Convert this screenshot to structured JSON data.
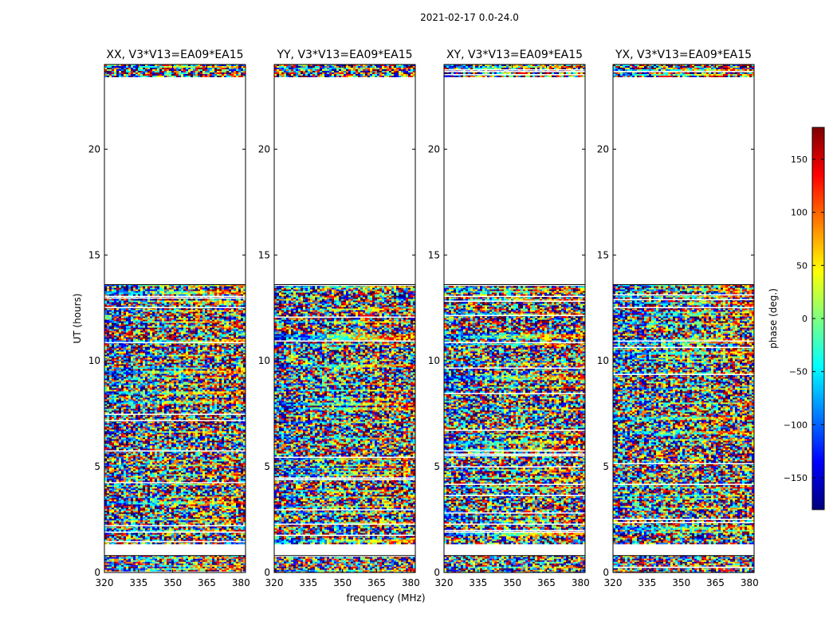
{
  "figure_title": "2021-02-17 0.0-24.0",
  "shared_xlabel": "frequency (MHz)",
  "shared_ylabel": "UT (hours)",
  "colorbar": {
    "label": "phase (deg.)",
    "range": [
      -180,
      180
    ],
    "ticks": [
      150,
      100,
      50,
      0,
      -50,
      -100,
      -150
    ],
    "tick_labels": [
      "150",
      "100",
      "50",
      "0",
      "−50",
      "−100",
      "−150"
    ],
    "colormap": [
      "#00007f",
      "#0000ff",
      "#007fff",
      "#00ffff",
      "#7fff7f",
      "#ffff00",
      "#ff7f00",
      "#ff0000",
      "#7f0000"
    ]
  },
  "chart_data": [
    {
      "type": "heatmap",
      "title": "XX, V3*V13=EA09*EA15",
      "xlabel": "frequency (MHz)",
      "ylabel": "UT (hours)",
      "xlim": [
        320,
        382
      ],
      "ylim": [
        0,
        24
      ],
      "xticks": [
        320,
        335,
        350,
        365,
        380
      ],
      "yticks": [
        0,
        5,
        10,
        15,
        20
      ],
      "value": "phase (deg.)",
      "data_time_ranges_hours": [
        [
          0.0,
          0.8
        ],
        [
          1.4,
          13.6
        ],
        [
          23.4,
          24.0
        ]
      ]
    },
    {
      "type": "heatmap",
      "title": "YY, V3*V13=EA09*EA15",
      "xlabel": "frequency (MHz)",
      "ylabel": "UT (hours)",
      "xlim": [
        320,
        382
      ],
      "ylim": [
        0,
        24
      ],
      "xticks": [
        320,
        335,
        350,
        365,
        380
      ],
      "yticks": [
        0,
        5,
        10,
        15,
        20
      ],
      "value": "phase (deg.)",
      "data_time_ranges_hours": [
        [
          0.0,
          0.8
        ],
        [
          1.4,
          13.6
        ],
        [
          23.4,
          24.0
        ]
      ]
    },
    {
      "type": "heatmap",
      "title": "XY, V3*V13=EA09*EA15",
      "xlabel": "frequency (MHz)",
      "ylabel": "UT (hours)",
      "xlim": [
        320,
        382
      ],
      "ylim": [
        0,
        24
      ],
      "xticks": [
        320,
        335,
        350,
        365,
        380
      ],
      "yticks": [
        0,
        5,
        10,
        15,
        20
      ],
      "value": "phase (deg.)",
      "data_time_ranges_hours": [
        [
          0.0,
          0.8
        ],
        [
          1.4,
          13.6
        ],
        [
          23.4,
          24.0
        ]
      ]
    },
    {
      "type": "heatmap",
      "title": "YX, V3*V13=EA09*EA15",
      "xlabel": "frequency (MHz)",
      "ylabel": "UT (hours)",
      "xlim": [
        320,
        382
      ],
      "ylim": [
        0,
        24
      ],
      "xticks": [
        320,
        335,
        350,
        365,
        380
      ],
      "yticks": [
        0,
        5,
        10,
        15,
        20
      ],
      "value": "phase (deg.)",
      "data_time_ranges_hours": [
        [
          0.0,
          0.8
        ],
        [
          1.4,
          13.6
        ],
        [
          23.4,
          24.0
        ]
      ]
    }
  ]
}
